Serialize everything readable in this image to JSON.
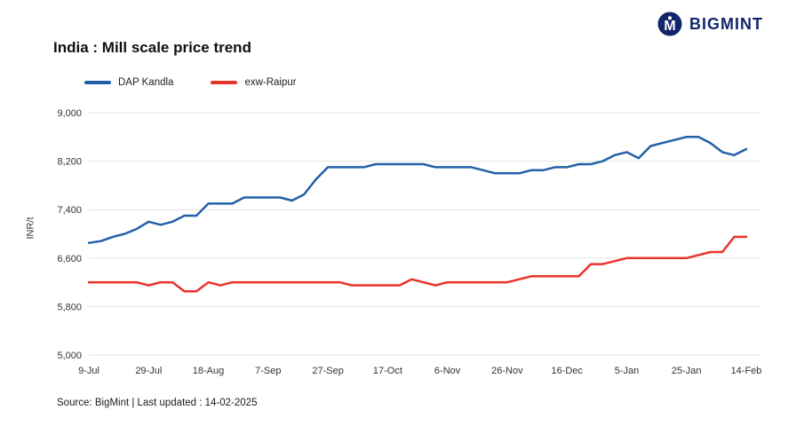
{
  "logo": {
    "text": "BIGMINT",
    "color": "#13266b",
    "icon": "bigmint-m-circle-icon"
  },
  "title": "India : Mill scale price trend",
  "source": "Source: BigMint | Last updated : 14-02-2025",
  "colors": {
    "series_blue": "#2160a8",
    "series_red": "#e8332b",
    "grid": "#e2e2e2",
    "text": "#333333",
    "brand_navy": "#13266b"
  },
  "chart_data": {
    "type": "line",
    "title": "India : Mill scale price trend",
    "xlabel": "",
    "ylabel": "INR/t",
    "ylim": [
      5000,
      9000
    ],
    "yticks": [
      5000,
      5800,
      6600,
      7400,
      8200,
      9000
    ],
    "grid": true,
    "legend_position": "top-left",
    "x_tick_labels": [
      "9-Jul",
      "29-Jul",
      "18-Aug",
      "7-Sep",
      "27-Sep",
      "17-Oct",
      "6-Nov",
      "26-Nov",
      "16-Dec",
      "5-Jan",
      "25-Jan",
      "14-Feb"
    ],
    "points_per_tick": 5,
    "series": [
      {
        "name": "DAP Kandla",
        "color": "#2160a8",
        "values": [
          6850,
          6880,
          6950,
          7000,
          7080,
          7200,
          7150,
          7200,
          7300,
          7300,
          7500,
          7500,
          7500,
          7600,
          7600,
          7600,
          7600,
          7550,
          7650,
          7900,
          8100,
          8100,
          8100,
          8100,
          8150,
          8150,
          8150,
          8150,
          8150,
          8100,
          8100,
          8100,
          8100,
          8050,
          8000,
          8000,
          8000,
          8050,
          8050,
          8100,
          8100,
          8150,
          8150,
          8200,
          8300,
          8350,
          8250,
          8450,
          8500,
          8550,
          8600,
          8600,
          8500,
          8350,
          8300,
          8400
        ]
      },
      {
        "name": "exw-Raipur",
        "color": "#e8332b",
        "values": [
          6200,
          6200,
          6200,
          6200,
          6200,
          6150,
          6200,
          6200,
          6050,
          6050,
          6200,
          6150,
          6200,
          6200,
          6200,
          6200,
          6200,
          6200,
          6200,
          6200,
          6200,
          6200,
          6150,
          6150,
          6150,
          6150,
          6150,
          6250,
          6200,
          6150,
          6200,
          6200,
          6200,
          6200,
          6200,
          6200,
          6250,
          6300,
          6300,
          6300,
          6300,
          6300,
          6500,
          6500,
          6550,
          6600,
          6600,
          6600,
          6600,
          6600,
          6600,
          6650,
          6700,
          6700,
          6950,
          6950
        ]
      }
    ]
  }
}
